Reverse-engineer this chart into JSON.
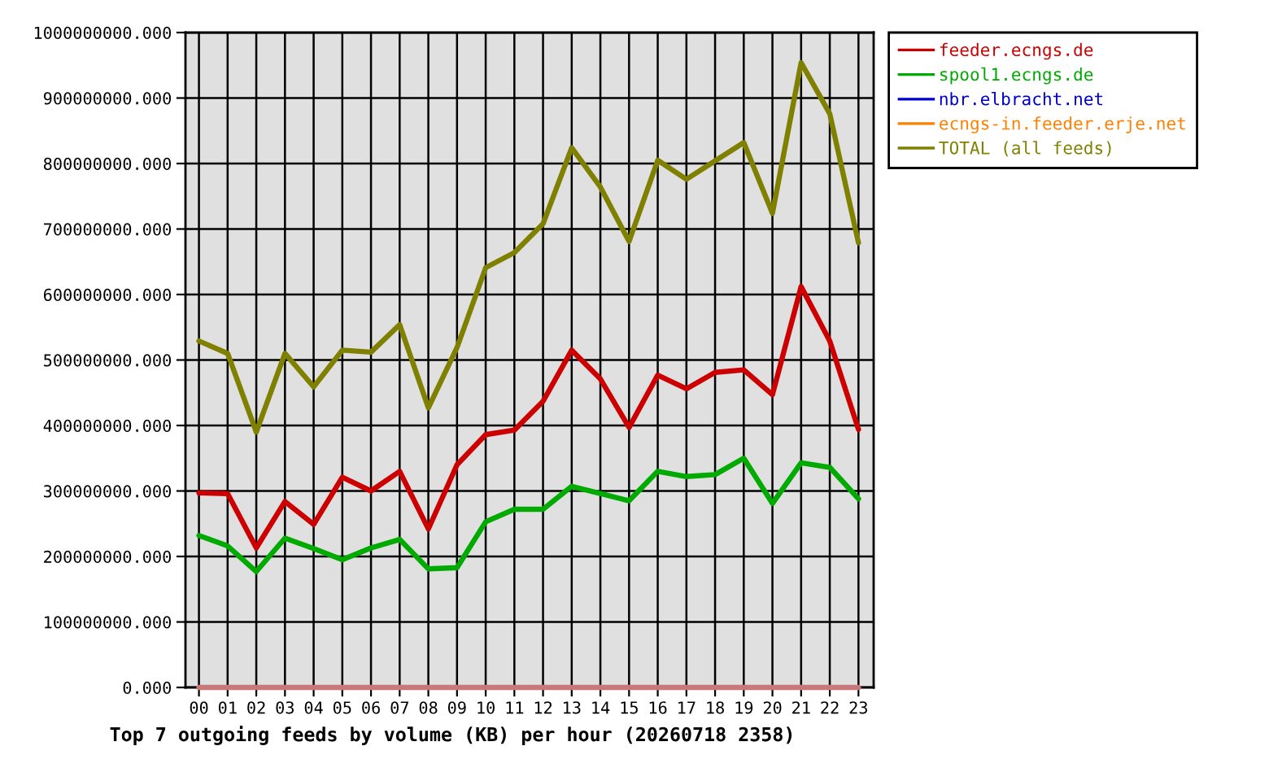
{
  "chart_data": {
    "type": "line",
    "title": "Top 7 outgoing feeds by volume (KB) per hour (20260718 2358)",
    "categories": [
      "00",
      "01",
      "02",
      "03",
      "04",
      "05",
      "06",
      "07",
      "08",
      "09",
      "10",
      "11",
      "12",
      "13",
      "14",
      "15",
      "16",
      "17",
      "18",
      "19",
      "20",
      "21",
      "22",
      "23"
    ],
    "series": [
      {
        "name": "feeder.ecngs.de",
        "color": "#cc0000",
        "values": [
          297000000,
          296000000,
          213000000,
          284000000,
          249000000,
          321000000,
          300000000,
          330000000,
          242000000,
          340000000,
          386000000,
          393000000,
          437000000,
          515000000,
          471000000,
          397000000,
          477000000,
          456000000,
          481000000,
          485000000,
          447000000,
          612000000,
          529000000,
          394000000
        ]
      },
      {
        "name": "spool1.ecngs.de",
        "color": "#00aa00",
        "values": [
          232000000,
          216000000,
          177000000,
          228000000,
          212000000,
          195000000,
          213000000,
          226000000,
          181000000,
          183000000,
          253000000,
          272000000,
          272000000,
          307000000,
          296000000,
          285000000,
          330000000,
          322000000,
          325000000,
          350000000,
          281000000,
          343000000,
          336000000,
          288000000
        ]
      },
      {
        "name": "nbr.elbracht.net",
        "color": "#0000cc",
        "values": [
          null,
          null,
          null,
          null,
          null,
          null,
          null,
          null,
          null,
          null,
          null,
          null,
          null,
          null,
          null,
          null,
          null,
          null,
          null,
          null,
          null,
          null,
          null,
          null
        ]
      },
      {
        "name": "ecngs-in.feeder.erje.net",
        "color": "#ff8000",
        "values": [
          null,
          null,
          null,
          null,
          null,
          null,
          null,
          null,
          null,
          null,
          null,
          null,
          null,
          null,
          null,
          null,
          null,
          null,
          null,
          null,
          null,
          null,
          null,
          null
        ]
      },
      {
        "color": "#c87878",
        "values": [
          0,
          0,
          0,
          0,
          0,
          0,
          0,
          0,
          0,
          0,
          0,
          0,
          0,
          0,
          0,
          0,
          0,
          0,
          0,
          0,
          0,
          0,
          0,
          0
        ]
      },
      {
        "name": "TOTAL (all feeds)",
        "color": "#808000",
        "values": [
          529000000,
          510000000,
          390000000,
          510000000,
          459000000,
          515000000,
          512000000,
          554000000,
          427000000,
          519000000,
          641000000,
          664000000,
          708000000,
          824000000,
          764000000,
          681000000,
          805000000,
          776000000,
          804000000,
          832000000,
          724000000,
          954000000,
          876000000,
          679000000
        ]
      }
    ],
    "ylim": [
      0,
      1000000000
    ],
    "yticks": [
      {
        "value": 0,
        "label": "0.000"
      },
      {
        "value": 100000000,
        "label": "100000000.000"
      },
      {
        "value": 200000000,
        "label": "200000000.000"
      },
      {
        "value": 300000000,
        "label": "300000000.000"
      },
      {
        "value": 400000000,
        "label": "400000000.000"
      },
      {
        "value": 500000000,
        "label": "500000000.000"
      },
      {
        "value": 600000000,
        "label": "600000000.000"
      },
      {
        "value": 700000000,
        "label": "700000000.000"
      },
      {
        "value": 800000000,
        "label": "800000000.000"
      },
      {
        "value": 900000000,
        "label": "900000000.000"
      },
      {
        "value": 1000000000,
        "label": "1000000000.000"
      }
    ],
    "grid": true,
    "legend": "right"
  }
}
